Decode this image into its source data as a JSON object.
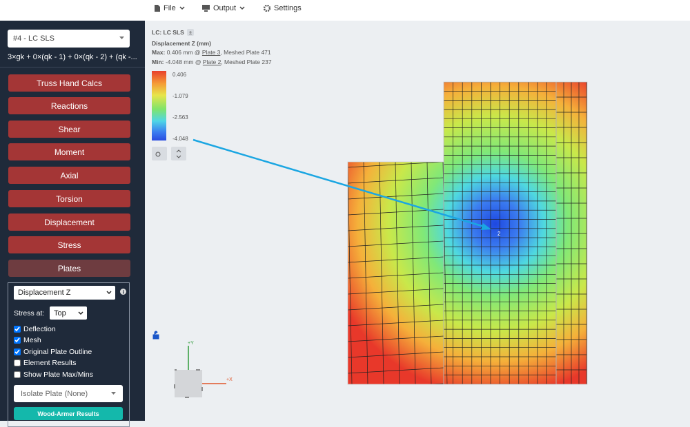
{
  "toolbar": {
    "items": [
      "File",
      "Output",
      "Settings"
    ]
  },
  "sidebar": {
    "load_case": "#4 - LC SLS",
    "combination": "3×gk + 0×(qk - 1) + 0×(qk - 2) + (qk -...",
    "buttons": [
      "Truss Hand Calcs",
      "Reactions",
      "Shear",
      "Moment",
      "Axial",
      "Torsion",
      "Displacement",
      "Stress",
      "Plates"
    ],
    "plates_panel": {
      "result_type": "Displacement Z",
      "stress_at_label": "Stress at:",
      "stress_at": "Top",
      "checkboxes": [
        {
          "label": "Deflection",
          "checked": true
        },
        {
          "label": "Mesh",
          "checked": true
        },
        {
          "label": "Original Plate Outline",
          "checked": true
        },
        {
          "label": "Element Results",
          "checked": false
        },
        {
          "label": "Show Plate Max/Mins",
          "checked": false
        }
      ],
      "isolate": "Isolate Plate (None)",
      "action": "Wood-Armer Results"
    }
  },
  "viewport": {
    "lc_label": "LC: LC SLS",
    "lc_toggle": "±",
    "title": "Displacement Z (mm)",
    "max": {
      "label": "Max:",
      "text": "0.406 mm @",
      "plate": "Plate 3",
      "suffix": ", Meshed Plate 471"
    },
    "min": {
      "label": "Min:",
      "text": "-4.048 mm @",
      "plate": "Plate 2",
      "suffix": ", Meshed Plate 237"
    },
    "legend": [
      "0.406",
      "-1.079",
      "-2.563",
      "-4.048"
    ],
    "node_label": "2",
    "axis_x": "+X",
    "axis_y": "+Y"
  }
}
